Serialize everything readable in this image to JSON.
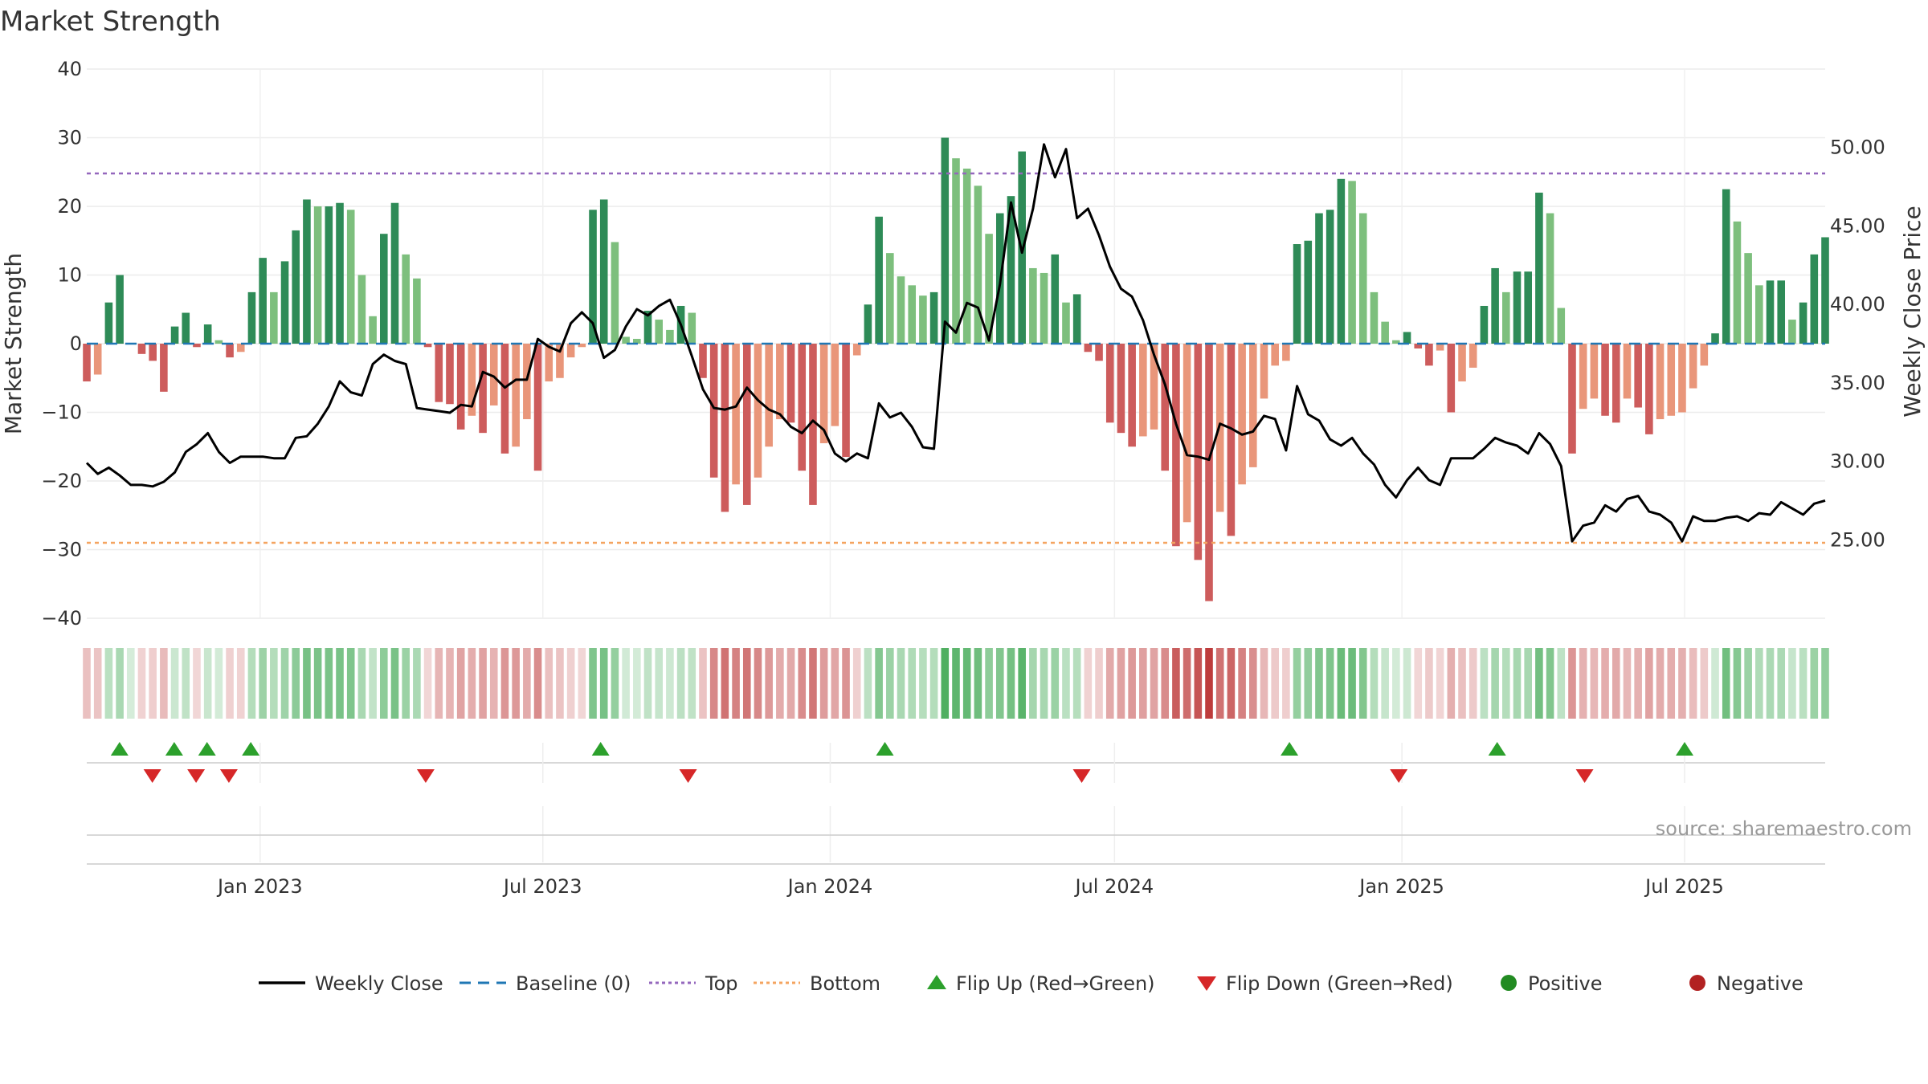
{
  "chart_data": {
    "type": "bar",
    "title": "Market Strength",
    "ylabel_left": "Market Strength",
    "ylabel_right": "Weekly Close Price",
    "x_start": "2022-09-12",
    "x_end": "2025-09-29",
    "x_ticks": [
      "2023-01-01",
      "2023-07-01",
      "2024-01-01",
      "2024-07-01",
      "2025-01-01",
      "2025-07-01"
    ],
    "x_tick_labels": [
      "Jan 2023",
      "Jul 2023",
      "Jan 2024",
      "Jul 2024",
      "Jan 2025",
      "Jul 2025"
    ],
    "ylim_left": [
      -40,
      40
    ],
    "y_ticks_left": [
      40,
      30,
      20,
      10,
      0,
      -10,
      -20,
      -30,
      -40
    ],
    "y_tick_labels_left": [
      "40",
      "30",
      "20",
      "10",
      "0",
      "−10",
      "−20",
      "−30",
      "−40"
    ],
    "ylim_right": [
      20,
      55
    ],
    "y_ticks_right": [
      50,
      45,
      40,
      35,
      30,
      25
    ],
    "y_tick_labels_right": [
      "50.00",
      "45.00",
      "40.00",
      "35.00",
      "30.00",
      "25.00"
    ],
    "top_line": 24.8,
    "bottom_line": -29,
    "strength": [
      -5.5,
      -4.5,
      6,
      10,
      0,
      -1.5,
      -2.5,
      -7,
      2.5,
      4.5,
      -0.5,
      2.8,
      0.5,
      -2,
      -1.2,
      7.5,
      12.5,
      7.5,
      12,
      16.5,
      21,
      20,
      20,
      20.5,
      19.5,
      10,
      4,
      16,
      20.5,
      13,
      9.5,
      -0.5,
      -8.5,
      -8.8,
      -12.5,
      -10.5,
      -13,
      -9,
      -16,
      -15,
      -11,
      -18.5,
      -5.5,
      -5,
      -2,
      -0.5,
      19.5,
      21,
      14.8,
      1,
      0.7,
      4.8,
      3.5,
      2,
      5.5,
      4.5,
      -5,
      -19.5,
      -24.5,
      -20.5,
      -23.5,
      -19.5,
      -15,
      -11,
      -11.5,
      -18.5,
      -23.5,
      -14.5,
      -12,
      -16.5,
      -1.7,
      5.7,
      18.5,
      13.2,
      9.8,
      8.5,
      7,
      7.5,
      30,
      27,
      25.5,
      23,
      16,
      19,
      21.5,
      28,
      11,
      10.3,
      13,
      6,
      7.2,
      -1.2,
      -2.5,
      -11.5,
      -13,
      -15,
      -13.5,
      -12.5,
      -18.5,
      -29.5,
      -26,
      -31.5,
      -37.5,
      -24.5,
      -28,
      -20.5,
      -18,
      -8,
      -3.2,
      -2.5,
      14.5,
      15,
      19,
      19.5,
      24,
      23.7,
      19,
      7.5,
      3.2,
      0.5,
      1.7,
      -0.7,
      -3.2,
      -1,
      -10,
      -5.5,
      -3.5,
      5.5,
      11,
      7.5,
      10.5,
      10.5,
      22,
      19,
      5.2,
      -16,
      -9.5,
      -8,
      -10.5,
      -11.5,
      -8,
      -9.3,
      -13.2,
      -11,
      -10.5,
      -10,
      -6.5,
      -3.2,
      1.5,
      22.5,
      17.8,
      13.2,
      8.5,
      9.2,
      9.2,
      3.5,
      6,
      13,
      15.5
    ],
    "close": [
      29.9,
      29.2,
      29.6,
      29.1,
      28.5,
      28.5,
      28.4,
      28.7,
      29.3,
      30.6,
      31.1,
      31.8,
      30.6,
      29.9,
      30.3,
      30.3,
      30.3,
      30.2,
      30.2,
      31.5,
      31.6,
      32.4,
      33.5,
      35.1,
      34.4,
      34.2,
      36.2,
      36.8,
      36.4,
      36.2,
      33.4,
      33.3,
      33.2,
      33.1,
      33.6,
      33.5,
      35.7,
      35.4,
      34.7,
      35.2,
      35.2,
      37.8,
      37.3,
      37.0,
      38.8,
      39.5,
      38.8,
      36.6,
      37.1,
      38.6,
      39.7,
      39.3,
      39.9,
      40.3,
      38.7,
      36.7,
      34.6,
      33.4,
      33.3,
      33.5,
      34.7,
      33.9,
      33.3,
      33.0,
      32.2,
      31.8,
      32.6,
      32.0,
      30.5,
      30.0,
      30.5,
      30.2,
      33.7,
      32.8,
      33.1,
      32.2,
      30.9,
      30.8,
      38.9,
      38.2,
      40.1,
      39.8,
      37.7,
      41.3,
      46.5,
      43.3,
      46.1,
      50.2,
      48.1,
      49.9,
      45.5,
      46.1,
      44.4,
      42.4,
      41.0,
      40.5,
      39.0,
      36.8,
      34.9,
      32.4,
      30.4,
      30.3,
      30.1,
      32.4,
      32.1,
      31.7,
      31.9,
      32.9,
      32.7,
      30.7,
      34.8,
      33.0,
      32.6,
      31.4,
      31.0,
      31.5,
      30.5,
      29.8,
      28.5,
      27.7,
      28.8,
      29.6,
      28.8,
      28.5,
      30.2,
      30.2,
      30.2,
      30.8,
      31.5,
      31.2,
      31.0,
      30.5,
      31.8,
      31.1,
      29.7,
      24.9,
      25.9,
      26.1,
      27.2,
      26.8,
      27.6,
      27.8,
      26.8,
      26.6,
      26.1,
      24.9,
      26.5,
      26.2,
      26.2,
      26.4,
      26.5,
      26.2,
      26.7,
      26.6,
      27.4,
      27.0,
      26.6,
      27.3,
      27.5
    ],
    "flip_up_dates": [
      "2022-10-03",
      "2022-11-07",
      "2022-11-28",
      "2022-12-26",
      "2023-08-07",
      "2024-02-05",
      "2024-10-21",
      "2025-03-03",
      "2025-07-01"
    ],
    "flip_down_dates": [
      "2022-10-24",
      "2022-11-21",
      "2022-12-12",
      "2023-04-17",
      "2023-10-02",
      "2024-06-10",
      "2024-12-30",
      "2025-04-28"
    ],
    "source": "source: sharemaestro.com",
    "legend": [
      {
        "label": "Weekly Close",
        "kind": "line"
      },
      {
        "label": "Baseline (0)",
        "kind": "dash"
      },
      {
        "label": "Top",
        "kind": "dot-purple"
      },
      {
        "label": "Bottom",
        "kind": "dot-orange"
      },
      {
        "label": "Flip Up (Red→Green)",
        "kind": "tri-up"
      },
      {
        "label": "Flip Down (Green→Red)",
        "kind": "tri-down"
      },
      {
        "label": "Positive",
        "kind": "dot-green"
      },
      {
        "label": "Negative",
        "kind": "dot-red"
      }
    ],
    "colors": {
      "pos_dark": "#2e8b57",
      "pos_light": "#7dbf7d",
      "neg_dark": "#cd5c5c",
      "neg_light": "#e9967a",
      "close_line": "#000000",
      "baseline": "#1f77b4",
      "top": "#9467bd",
      "bottom": "#f4a460",
      "flip_up": "#2ca02c",
      "flip_down": "#d62728",
      "positive": "#228b22",
      "negative": "#b22222"
    }
  }
}
